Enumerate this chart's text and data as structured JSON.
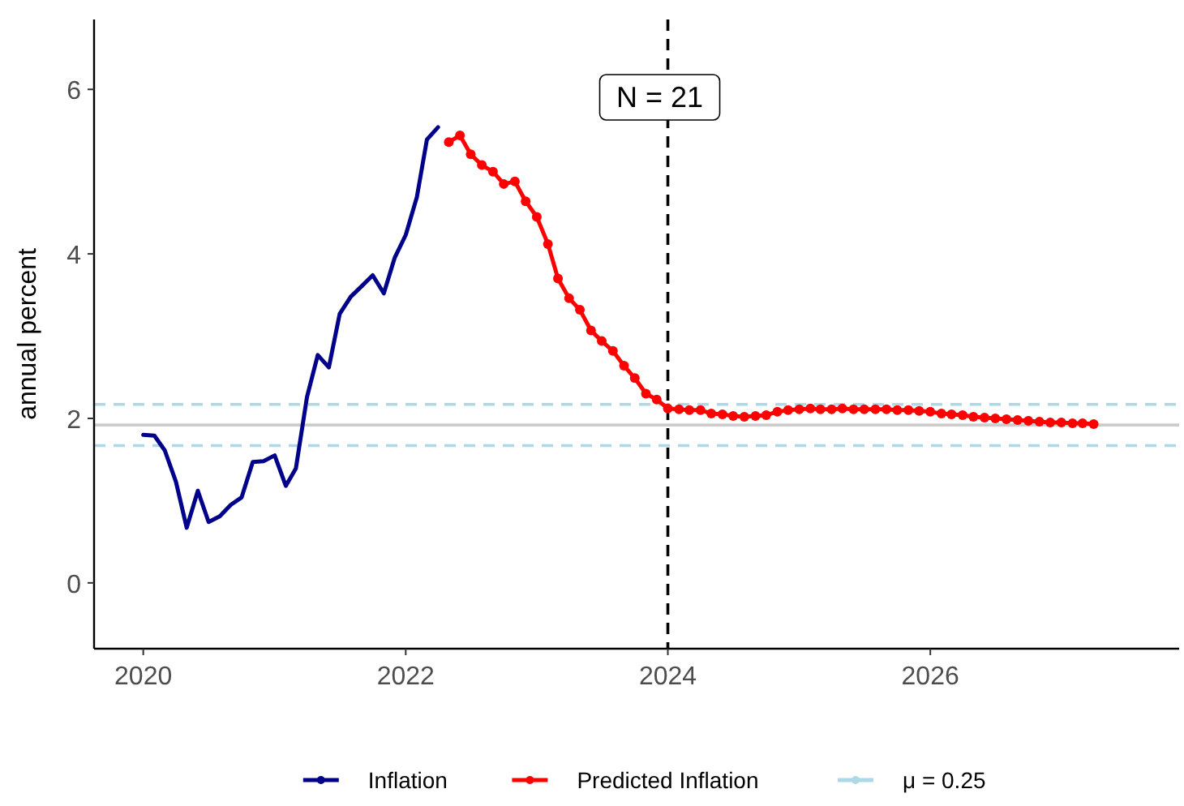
{
  "chart_data": {
    "type": "line",
    "ylabel": "annual percent",
    "xlim": [
      "2019-08-17",
      "2027-11-25"
    ],
    "xticks": [
      "2020",
      "2022",
      "2024",
      "2026"
    ],
    "ylim": [
      -0.8,
      6.85
    ],
    "yticks": [
      0,
      2,
      4,
      6
    ],
    "grid": false,
    "legend": "bottom",
    "series": [
      {
        "name": "Inflation",
        "color": "#00008b",
        "marker": "none",
        "x": [
          "2020-01",
          "2020-02",
          "2020-03",
          "2020-04",
          "2020-05",
          "2020-06",
          "2020-07",
          "2020-08",
          "2020-09",
          "2020-10",
          "2020-11",
          "2020-12",
          "2021-01",
          "2021-02",
          "2021-03",
          "2021-04",
          "2021-05",
          "2021-06",
          "2021-07",
          "2021-08",
          "2021-09",
          "2021-10",
          "2021-11",
          "2021-12",
          "2022-01",
          "2022-02",
          "2022-03",
          "2022-04"
        ],
        "values": [
          1.8,
          1.79,
          1.61,
          1.23,
          0.67,
          1.12,
          0.74,
          0.81,
          0.95,
          1.04,
          1.47,
          1.48,
          1.55,
          1.18,
          1.39,
          2.26,
          2.77,
          2.62,
          3.27,
          3.48,
          3.61,
          3.74,
          3.52,
          3.95,
          4.23,
          4.69,
          5.39,
          5.54
        ]
      },
      {
        "name": "Predicted Inflation",
        "color": "#ff0000",
        "marker": "circle",
        "x": [
          "2022-05",
          "2022-06",
          "2022-07",
          "2022-08",
          "2022-09",
          "2022-10",
          "2022-11",
          "2022-12",
          "2023-01",
          "2023-02",
          "2023-03",
          "2023-04",
          "2023-05",
          "2023-06",
          "2023-07",
          "2023-08",
          "2023-09",
          "2023-10",
          "2023-11",
          "2023-12",
          "2024-01",
          "2024-02",
          "2024-03",
          "2024-04",
          "2024-05",
          "2024-06",
          "2024-07",
          "2024-08",
          "2024-09",
          "2024-10",
          "2024-11",
          "2024-12",
          "2025-01",
          "2025-02",
          "2025-03",
          "2025-04",
          "2025-05",
          "2025-06",
          "2025-07",
          "2025-08",
          "2025-09",
          "2025-10",
          "2025-11",
          "2025-12",
          "2026-01",
          "2026-02",
          "2026-03",
          "2026-04",
          "2026-05",
          "2026-06",
          "2026-07",
          "2026-08",
          "2026-09",
          "2026-10",
          "2026-11",
          "2026-12",
          "2027-01",
          "2027-02",
          "2027-03",
          "2027-04"
        ],
        "values": [
          5.36,
          5.44,
          5.21,
          5.08,
          5.0,
          4.85,
          4.88,
          4.64,
          4.45,
          4.12,
          3.7,
          3.46,
          3.32,
          3.07,
          2.94,
          2.82,
          2.64,
          2.49,
          2.3,
          2.23,
          2.12,
          2.11,
          2.1,
          2.1,
          2.06,
          2.05,
          2.03,
          2.02,
          2.03,
          2.04,
          2.08,
          2.1,
          2.11,
          2.12,
          2.11,
          2.11,
          2.12,
          2.11,
          2.11,
          2.11,
          2.11,
          2.1,
          2.1,
          2.09,
          2.08,
          2.06,
          2.05,
          2.04,
          2.02,
          2.01,
          2.0,
          1.99,
          1.98,
          1.97,
          1.96,
          1.95,
          1.95,
          1.94,
          1.94,
          1.93
        ]
      }
    ],
    "ref_lines": [
      {
        "axis": "y",
        "value": 1.92,
        "color": "#cccccc",
        "line_style": "solid"
      },
      {
        "axis": "y",
        "value": 2.17,
        "color": "#add8e6",
        "line_style": "dashed"
      },
      {
        "axis": "y",
        "value": 1.67,
        "color": "#add8e6",
        "line_style": "dashed"
      },
      {
        "axis": "x",
        "value": "2024-01",
        "color": "#000000",
        "line_style": "dashed"
      }
    ],
    "annotations": [
      "N = 21",
      "μ = 0.25"
    ]
  }
}
